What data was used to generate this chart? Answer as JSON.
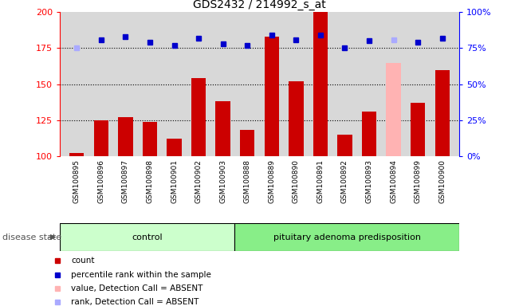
{
  "title": "GDS2432 / 214992_s_at",
  "samples": [
    "GSM100895",
    "GSM100896",
    "GSM100897",
    "GSM100898",
    "GSM100901",
    "GSM100902",
    "GSM100903",
    "GSM100888",
    "GSM100889",
    "GSM100890",
    "GSM100891",
    "GSM100892",
    "GSM100893",
    "GSM100894",
    "GSM100899",
    "GSM100900"
  ],
  "bar_values": [
    102,
    125,
    127,
    124,
    112,
    154,
    138,
    118,
    183,
    152,
    200,
    115,
    131,
    165,
    137,
    160
  ],
  "bar_colors": [
    "#cc0000",
    "#cc0000",
    "#cc0000",
    "#cc0000",
    "#cc0000",
    "#cc0000",
    "#cc0000",
    "#cc0000",
    "#cc0000",
    "#cc0000",
    "#cc0000",
    "#cc0000",
    "#cc0000",
    "#ffb3b3",
    "#cc0000",
    "#cc0000"
  ],
  "rank_values": [
    175,
    181,
    183,
    179,
    177,
    182,
    178,
    177,
    184,
    181,
    184,
    175,
    180,
    181,
    179,
    182
  ],
  "rank_colors": [
    "#aaaaff",
    "#0000cc",
    "#0000cc",
    "#0000cc",
    "#0000cc",
    "#0000cc",
    "#0000cc",
    "#0000cc",
    "#0000cc",
    "#0000cc",
    "#0000cc",
    "#0000cc",
    "#0000cc",
    "#aaaaff",
    "#0000cc",
    "#0000cc"
  ],
  "ylim_left": [
    100,
    200
  ],
  "ylim_right": [
    0,
    100
  ],
  "yticks_left": [
    100,
    125,
    150,
    175,
    200
  ],
  "yticks_right": [
    0,
    25,
    50,
    75,
    100
  ],
  "ytick_labels_right": [
    "0%",
    "25%",
    "50%",
    "75%",
    "100%"
  ],
  "dotted_lines": [
    125,
    150,
    175
  ],
  "ctrl_count": 7,
  "group_labels": [
    "control",
    "pituitary adenoma predisposition"
  ],
  "ctrl_color": "#ccffcc",
  "pap_color": "#88ee88",
  "disease_state_label": "disease state",
  "legend_items": [
    {
      "label": "count",
      "color": "#cc0000"
    },
    {
      "label": "percentile rank within the sample",
      "color": "#0000cc"
    },
    {
      "label": "value, Detection Call = ABSENT",
      "color": "#ffb3b3"
    },
    {
      "label": "rank, Detection Call = ABSENT",
      "color": "#aaaaff"
    }
  ],
  "bar_width": 0.6,
  "rank_marker_size": 5,
  "background_color": "#ffffff",
  "plot_bg": "#d8d8d8"
}
